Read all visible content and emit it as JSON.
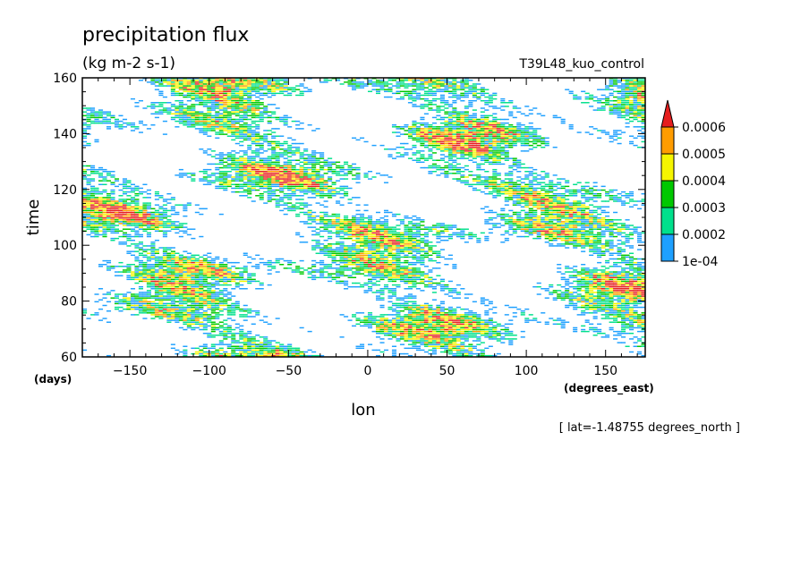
{
  "chart_data": {
    "type": "heatmap",
    "title": "precipitation flux",
    "units": "(kg m-2 s-1)",
    "experiment": "T39L48_kuo_control",
    "xlabel": "lon",
    "ylabel": "time",
    "x_units": "(degrees_east)",
    "y_units": "(days)",
    "xlim": [
      -180,
      175
    ],
    "ylim": [
      60,
      160
    ],
    "x_ticks": [
      -150,
      -100,
      -50,
      0,
      50,
      100,
      150
    ],
    "y_ticks": [
      60,
      80,
      100,
      120,
      140,
      160
    ],
    "x_tick_labels": [
      "−150",
      "−100",
      "−50",
      "0",
      "50",
      "100",
      "150"
    ],
    "y_tick_labels": [
      "60",
      "80",
      "100",
      "120",
      "140",
      "160"
    ],
    "grid": false,
    "annotation": "[ lat=-1.48755 degrees_north ]",
    "colorbar": {
      "position": "right",
      "levels": [
        0.0001,
        0.0002,
        0.0003,
        0.0004,
        0.0005,
        0.0006
      ],
      "level_labels": [
        "1e-04",
        "0.0002",
        "0.0003",
        "0.0004",
        "0.0005",
        "0.0006"
      ],
      "colors": [
        "#1ea0ff",
        "#00e08c",
        "#00c800",
        "#f5f500",
        "#ff9c00",
        "#e61e1e"
      ],
      "extend": "max"
    }
  }
}
